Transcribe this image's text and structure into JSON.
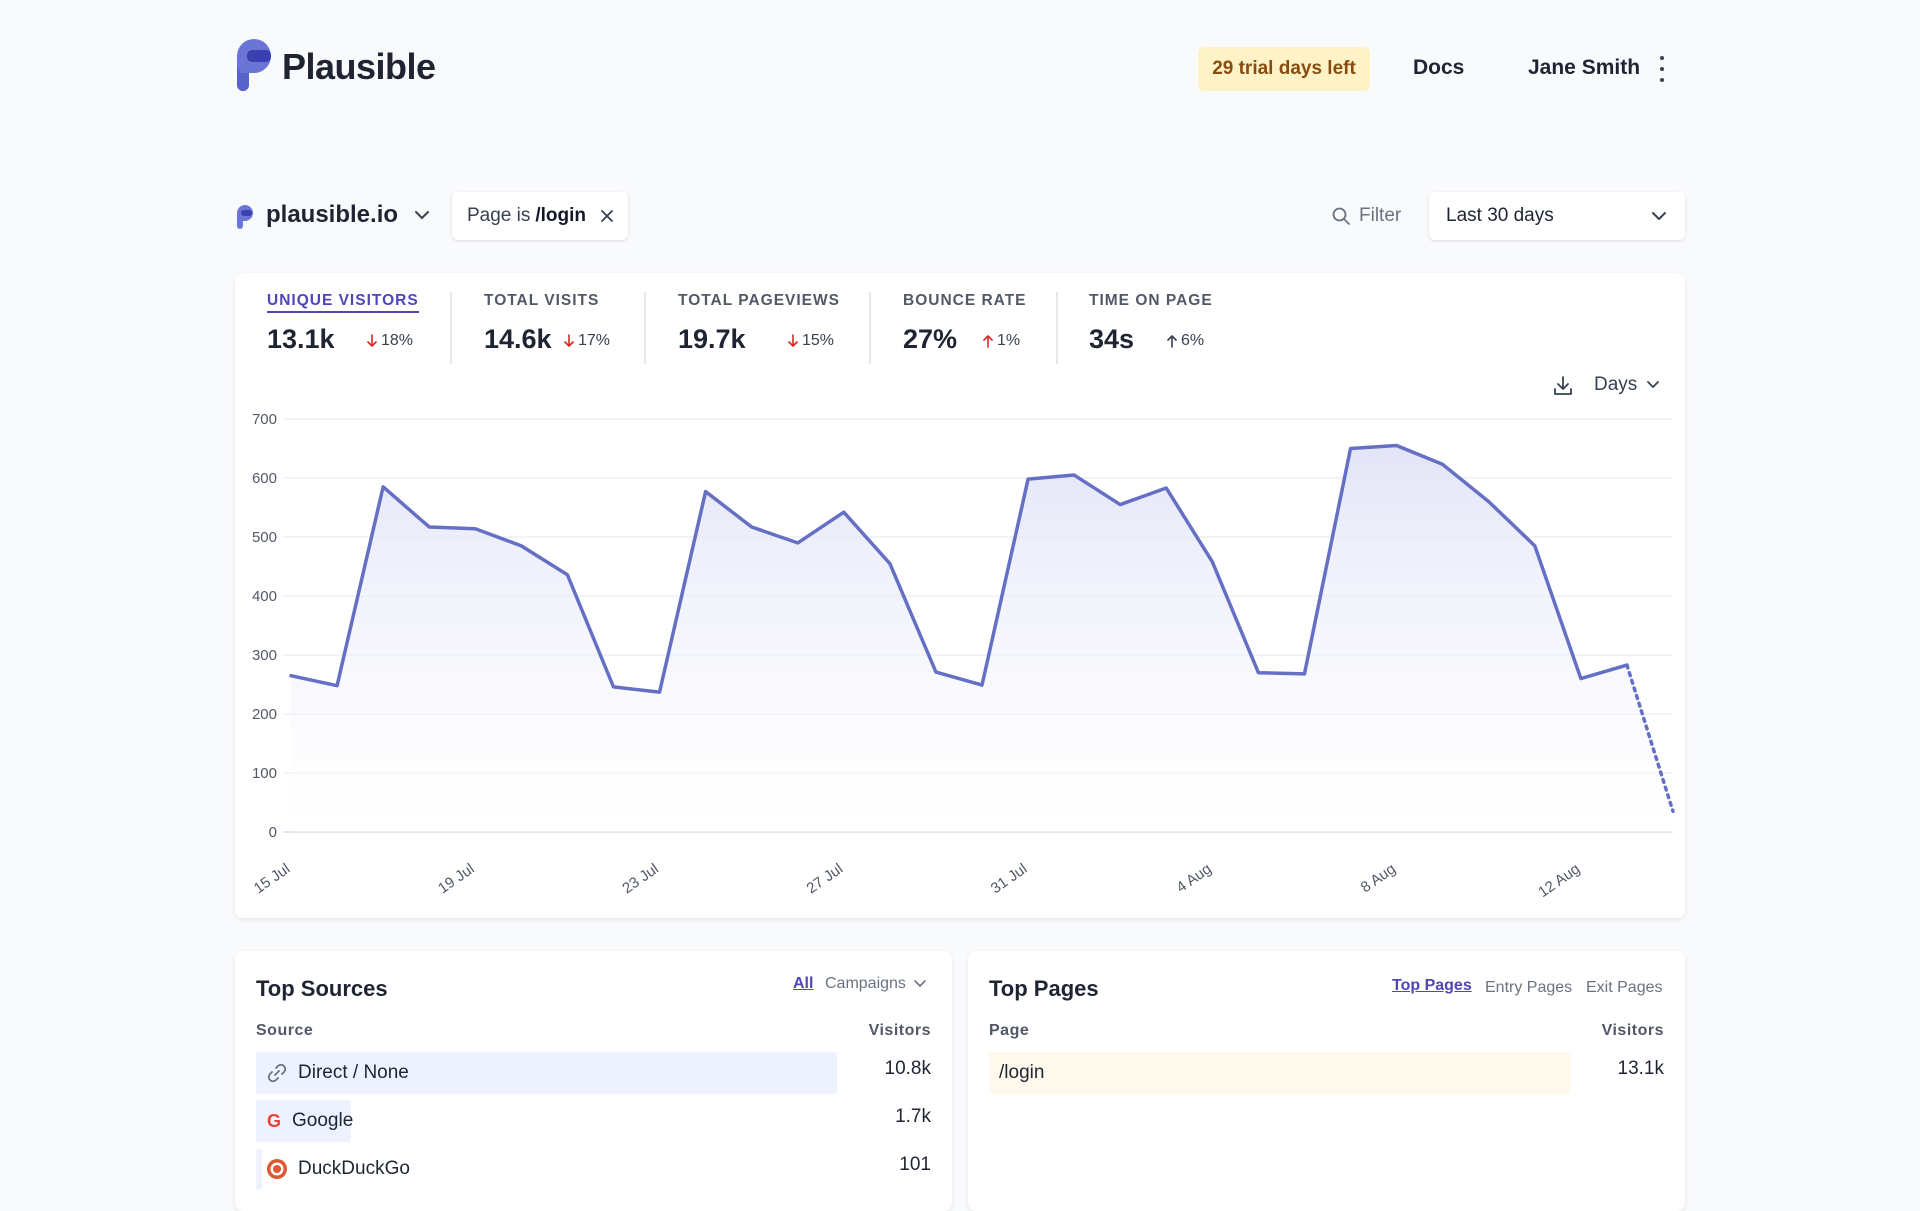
{
  "header": {
    "brand": "Plausible",
    "trial_badge": "29 trial days left",
    "docs": "Docs",
    "user_name": "Jane Smith"
  },
  "toolbar": {
    "site_name": "plausible.io",
    "filter_chip_prefix": "Page is",
    "filter_chip_value": "/login",
    "filter_button": "Filter",
    "period": "Last 30 days"
  },
  "metrics": [
    {
      "label": "UNIQUE VISITORS",
      "value": "13.1k",
      "change": "18%",
      "direction": "down",
      "active": true
    },
    {
      "label": "TOTAL VISITS",
      "value": "14.6k",
      "change": "17%",
      "direction": "down",
      "active": false
    },
    {
      "label": "TOTAL PAGEVIEWS",
      "value": "19.7k",
      "change": "15%",
      "direction": "down",
      "active": false
    },
    {
      "label": "BOUNCE RATE",
      "value": "27%",
      "change": "1%",
      "direction": "up",
      "active": false
    },
    {
      "label": "TIME ON PAGE",
      "value": "34s",
      "change": "6%",
      "direction": "up",
      "active": false
    }
  ],
  "graph_controls": {
    "interval": "Days"
  },
  "chart_data": {
    "type": "area",
    "ylim": [
      0,
      700
    ],
    "yticks": [
      0,
      100,
      200,
      300,
      400,
      500,
      600,
      700
    ],
    "x_tick_labels": [
      "15 Jul",
      "19 Jul",
      "23 Jul",
      "27 Jul",
      "31 Jul",
      "4 Aug",
      "8 Aug",
      "12 Aug"
    ],
    "x": [
      "15 Jul",
      "16 Jul",
      "17 Jul",
      "18 Jul",
      "19 Jul",
      "20 Jul",
      "21 Jul",
      "22 Jul",
      "23 Jul",
      "24 Jul",
      "25 Jul",
      "26 Jul",
      "27 Jul",
      "28 Jul",
      "29 Jul",
      "30 Jul",
      "31 Jul",
      "1 Aug",
      "2 Aug",
      "3 Aug",
      "4 Aug",
      "5 Aug",
      "6 Aug",
      "7 Aug",
      "8 Aug",
      "9 Aug",
      "10 Aug",
      "11 Aug",
      "12 Aug",
      "13 Aug",
      "14 Aug"
    ],
    "values": [
      265,
      248,
      585,
      517,
      514,
      485,
      436,
      246,
      237,
      577,
      517,
      490,
      542,
      455,
      271,
      249,
      598,
      605,
      555,
      583,
      458,
      270,
      268,
      650,
      655,
      623,
      560,
      485,
      260,
      283,
      35
    ],
    "incomplete_from_index": 29,
    "grid": true,
    "line_color": "#6570c4",
    "fill_color": "#eef0fb"
  },
  "top_sources": {
    "title": "Top Sources",
    "tabs": [
      "All",
      "Campaigns"
    ],
    "active_tab": "All",
    "col_label": "Source",
    "col_value": "Visitors",
    "rows": [
      {
        "label": "Direct / None",
        "value": "10.8k",
        "share": 1.0,
        "icon": "link-icon"
      },
      {
        "label": "Google",
        "value": "1.7k",
        "share": 0.16,
        "icon": "google-icon"
      },
      {
        "label": "DuckDuckGo",
        "value": "101",
        "share": 0.009,
        "icon": "duckduckgo-icon"
      }
    ]
  },
  "top_pages": {
    "title": "Top Pages",
    "tabs": [
      "Top Pages",
      "Entry Pages",
      "Exit Pages"
    ],
    "active_tab": "Top Pages",
    "col_label": "Page",
    "col_value": "Visitors",
    "rows": [
      {
        "label": "/login",
        "value": "13.1k",
        "share": 1.0
      }
    ]
  },
  "colors": {
    "accent": "#4f46b8",
    "trial_bg": "#fdf3c7",
    "source_bar": "#eef2ff",
    "page_bar": "#fef9ec",
    "down": "#dc2626",
    "up": "#dc2626"
  }
}
